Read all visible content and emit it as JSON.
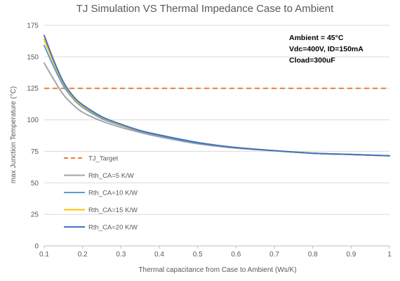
{
  "chart_data": {
    "type": "line",
    "title": "TJ Simulation VS Thermal Impedance Case to Ambient",
    "xlabel": "Thermal capacitance from Case to Ambient (Ws/K)",
    "ylabel": "max Junction Temperature (°C)",
    "xlim": [
      0.1,
      1
    ],
    "ylim": [
      0,
      175
    ],
    "x_ticks": [
      0.1,
      0.2,
      0.3,
      0.4,
      0.5,
      0.6,
      0.7,
      0.8,
      0.9,
      1
    ],
    "x_tick_labels": [
      "0.1",
      "0.2",
      "0.3",
      "0.4",
      "0.5",
      "0.6",
      "0.7",
      "0.8",
      "0.9",
      "1"
    ],
    "y_ticks": [
      0,
      25,
      50,
      75,
      100,
      125,
      150,
      175
    ],
    "grid": "horizontal",
    "legend_position": "left",
    "annotations": [
      "Ambient = 45°C",
      "Vdc=400V, ID=150mA",
      "Cload=300uF"
    ],
    "series": [
      {
        "name": "TJ_Target",
        "color": "#ED7D31",
        "dashed": true,
        "x": [
          0.1,
          1
        ],
        "y": [
          125,
          125
        ]
      },
      {
        "name": "Rth_CA=5 K/W",
        "color": "#A5A5A5",
        "dashed": false,
        "x": [
          0.1,
          0.125,
          0.15,
          0.175,
          0.2,
          0.25,
          0.3,
          0.35,
          0.4,
          0.5,
          0.6,
          0.7,
          0.8,
          0.9,
          1.0
        ],
        "y": [
          145,
          132,
          120,
          112,
          106,
          99,
          94,
          90,
          86.5,
          81,
          77.5,
          75.5,
          73.5,
          72.5,
          71.5
        ]
      },
      {
        "name": "Rth_CA=10 K/W",
        "color": "#5B9BD5",
        "dashed": false,
        "x": [
          0.1,
          0.125,
          0.15,
          0.175,
          0.2,
          0.25,
          0.3,
          0.35,
          0.4,
          0.5,
          0.6,
          0.7,
          0.8,
          0.9,
          1.0
        ],
        "y": [
          159,
          142,
          127,
          117,
          110,
          101,
          95.5,
          91,
          87.5,
          81.5,
          78,
          75.5,
          73.5,
          72.5,
          71.5
        ]
      },
      {
        "name": "Rth_CA=15 K/W",
        "color": "#FFC000",
        "dashed": false,
        "x": [
          0.1,
          0.125,
          0.15,
          0.175,
          0.2,
          0.25,
          0.3,
          0.35,
          0.4,
          0.5,
          0.6,
          0.7,
          0.8,
          0.9,
          1.0
        ],
        "y": [
          164,
          145,
          129,
          118,
          111,
          102,
          96,
          91.5,
          88,
          82,
          78,
          75.5,
          73.5,
          72.5,
          71.5
        ]
      },
      {
        "name": "Rth_CA=20 K/W",
        "color": "#4472C4",
        "dashed": false,
        "x": [
          0.1,
          0.125,
          0.15,
          0.175,
          0.2,
          0.25,
          0.3,
          0.35,
          0.4,
          0.5,
          0.6,
          0.7,
          0.8,
          0.9,
          1.0
        ],
        "y": [
          167,
          147,
          130,
          119,
          112,
          102.5,
          96.5,
          91.5,
          88,
          82,
          78,
          75.5,
          73.5,
          72.5,
          71.5
        ]
      }
    ]
  }
}
